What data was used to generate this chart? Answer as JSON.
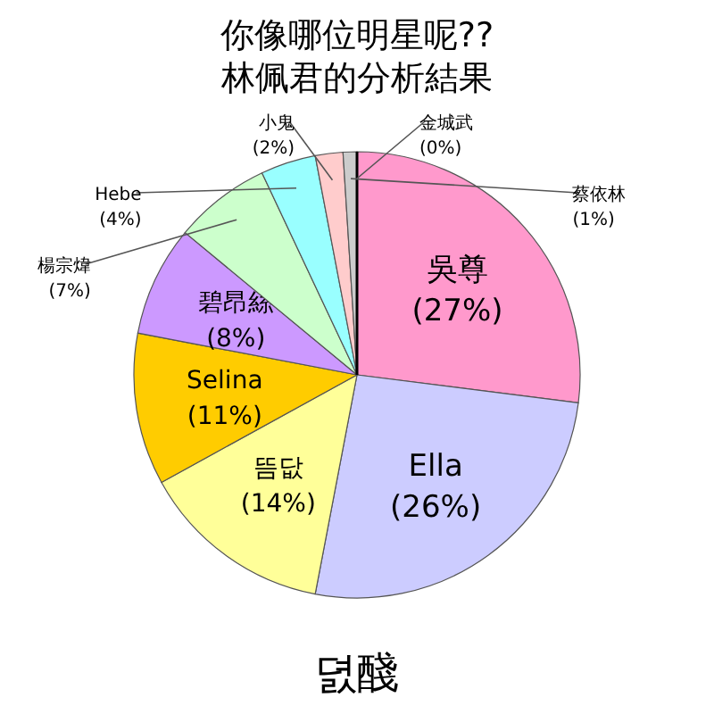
{
  "chart_data": {
    "type": "pie",
    "title": "你像哪位明星呢??",
    "subtitle": "林佩君的分析結果",
    "categories": [
      "吳尊",
      "Ella",
      "뜸닶",
      "Selina",
      "碧昂絲",
      "楊宗煒",
      "Hebe",
      "小鬼",
      "蔡依林",
      "金城武"
    ],
    "values": [
      27,
      26,
      14,
      11,
      8,
      7,
      4,
      2,
      1,
      0
    ],
    "value_labels": [
      "(27%)",
      "(26%)",
      "(14%)",
      "(11%)",
      "(8%)",
      "(7%)",
      "(4%)",
      "(2%)",
      "(1%)",
      "(0%)"
    ],
    "colors": [
      "#ff99cc",
      "#ccccff",
      "#ffff99",
      "#ffcc00",
      "#cc99ff",
      "#ccffcc",
      "#99ffff",
      "#ffcccc",
      "#cccccc",
      "#000000"
    ],
    "annotations": [
      "뎘醆"
    ]
  }
}
